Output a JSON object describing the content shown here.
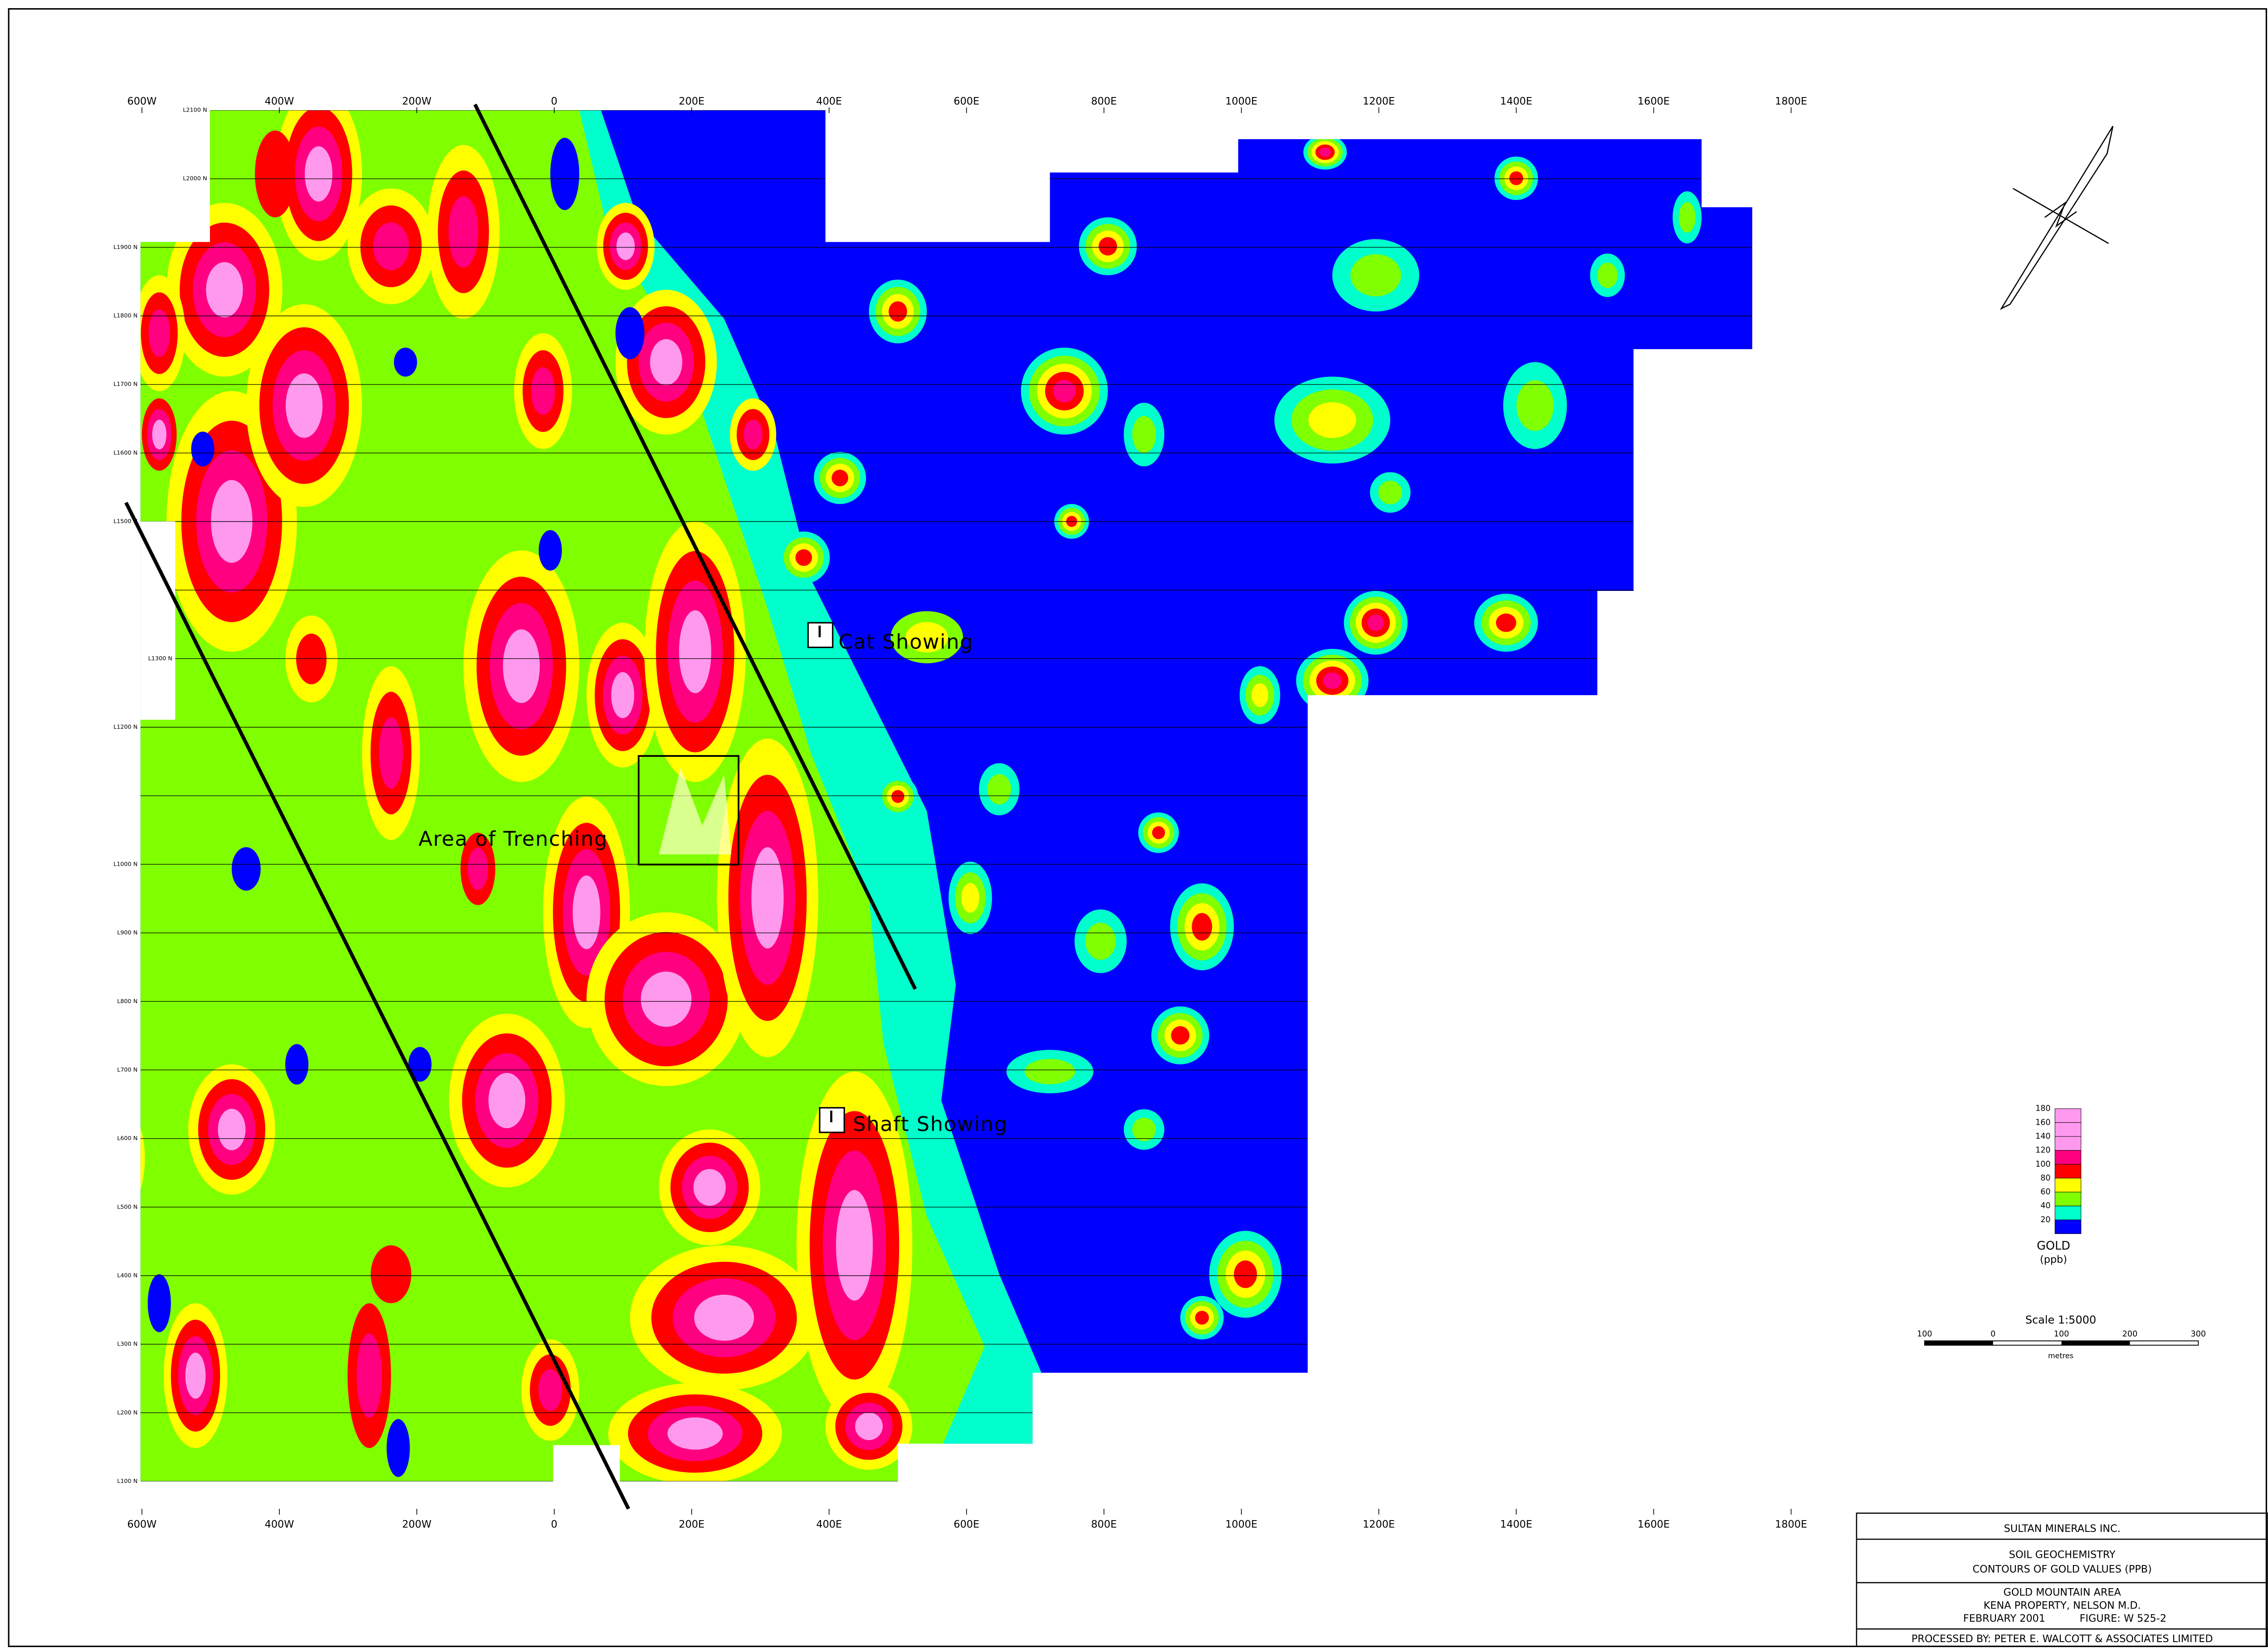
{
  "map": {
    "easting_labels": [
      "600W",
      "400W",
      "200W",
      "0",
      "200E",
      "400E",
      "600E",
      "800E",
      "1000E",
      "1200E",
      "1400E",
      "1600E",
      "1800E"
    ],
    "line_labels": [
      "L2100 N",
      "L2000 N",
      "L1900 N",
      "L1800 N",
      "L1700 N",
      "L1600 N",
      "L1500 N",
      "L1300 N",
      "L1200 N",
      "L1000 N",
      "L900 N",
      "L800 N",
      "L700 N",
      "L600 N",
      "L500 N",
      "L400 N",
      "L300 N",
      "L200 N",
      "L100 N"
    ],
    "annotations": {
      "cat_showing": "Cat Showing",
      "shaft_showing": "Shaft Showing",
      "area_of_trenching": "Area of Trenching"
    }
  },
  "legend": {
    "title": "GOLD",
    "unit": "(ppb)",
    "levels": [
      20,
      40,
      60,
      80,
      100,
      120,
      140,
      160,
      180
    ],
    "colors": [
      "#0000ff",
      "#00ffcc",
      "#80ff00",
      "#ffff00",
      "#ff0000",
      "#ff0080",
      "#ff99ee",
      "#ff99ee",
      "#ff99ee"
    ]
  },
  "scale": {
    "title": "Scale 1:5000",
    "ticks": [
      "100",
      "0",
      "100",
      "200",
      "300"
    ],
    "unit": "metres"
  },
  "title_block": {
    "company": "SULTAN MINERALS INC.",
    "subject_1": "SOIL GEOCHEMISTRY",
    "subject_2": "CONTOURS OF GOLD VALUES (PPB)",
    "area": "GOLD MOUNTAIN AREA",
    "property": "KENA PROPERTY, NELSON M.D.",
    "date": "FEBRUARY 2001",
    "figure": "FIGURE: W 525-2",
    "processed_by": "PROCESSED BY: PETER E. WALCOTT & ASSOCIATES LIMITED"
  }
}
